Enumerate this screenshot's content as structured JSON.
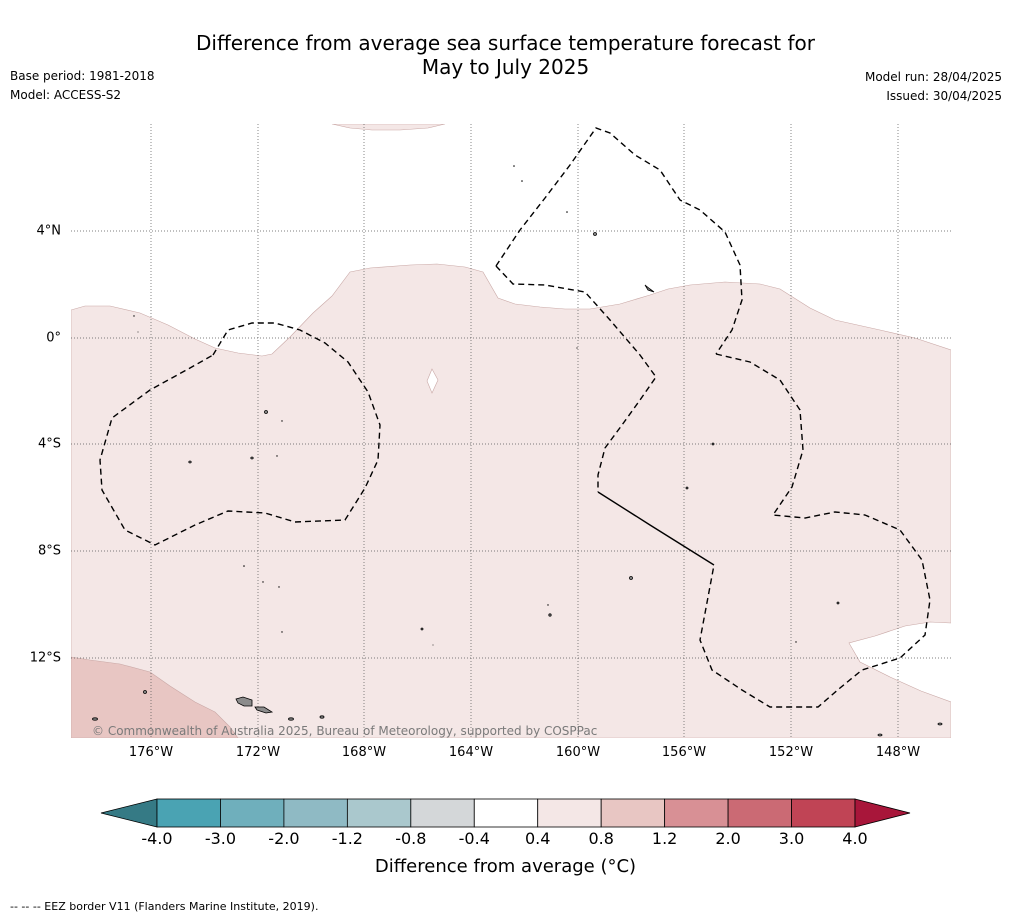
{
  "title": {
    "line1": "Difference from average sea surface temperature forecast for",
    "line2": "May to July 2025"
  },
  "meta": {
    "base_period": "Base period: 1981-2018",
    "model": "Model: ACCESS-S2",
    "model_run": "Model run: 28/04/2025",
    "issued": "Issued: 30/04/2025"
  },
  "map": {
    "lat_labels": [
      "4°N",
      "0°",
      "4°S",
      "8°S",
      "12°S"
    ],
    "lon_labels": [
      "176°W",
      "172°W",
      "168°W",
      "164°W",
      "160°W",
      "156°W",
      "152°W",
      "148°W"
    ],
    "credit": "© Commonwealth of Australia 2025, Bureau of Meteorology, supported by COSPPac",
    "fill_colors": {
      "band_0_4_to_0_8": "#f4e7e6",
      "band_0_8_to_1_2": "#e8c6c3",
      "land": "#8c8c8c"
    }
  },
  "colorbar": {
    "ticks": [
      "-4.0",
      "-3.0",
      "-2.0",
      "-1.2",
      "-0.8",
      "-0.4",
      "0.4",
      "0.8",
      "1.2",
      "2.0",
      "3.0",
      "4.0"
    ],
    "colors": [
      "#357a85",
      "#4aa3b3",
      "#6fafbc",
      "#8fbac4",
      "#aac8cd",
      "#d4d7d9",
      "#ffffff",
      "#f4e7e6",
      "#e8c6c3",
      "#d89095",
      "#cb6a74",
      "#c04455",
      "#a8163a"
    ],
    "label": "Difference from average (°C)"
  },
  "footer": {
    "legend": "--  --  -- EEZ border V11 (Flanders Marine Institute, 2019)."
  }
}
